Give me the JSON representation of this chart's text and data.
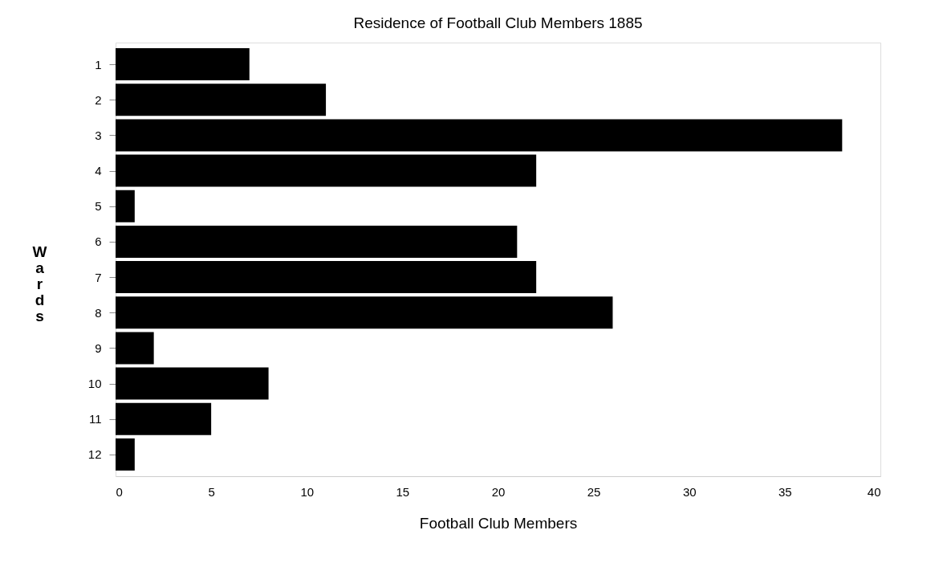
{
  "chart_data": {
    "type": "bar",
    "orientation": "horizontal",
    "title": "Residence of Football Club Members 1885",
    "xlabel": "Football Club Members",
    "ylabel": "Wards",
    "categories": [
      "1",
      "2",
      "3",
      "4",
      "5",
      "6",
      "7",
      "8",
      "9",
      "10",
      "11",
      "12"
    ],
    "series": [
      {
        "color": "#000000",
        "values": [
          7,
          11,
          38,
          22,
          1,
          21,
          22,
          26,
          2,
          8,
          5,
          1
        ]
      }
    ],
    "xlim": [
      0,
      40
    ],
    "xticks": [
      0,
      5,
      10,
      15,
      20,
      25,
      30,
      35,
      40
    ],
    "grid": false,
    "legend": false
  }
}
